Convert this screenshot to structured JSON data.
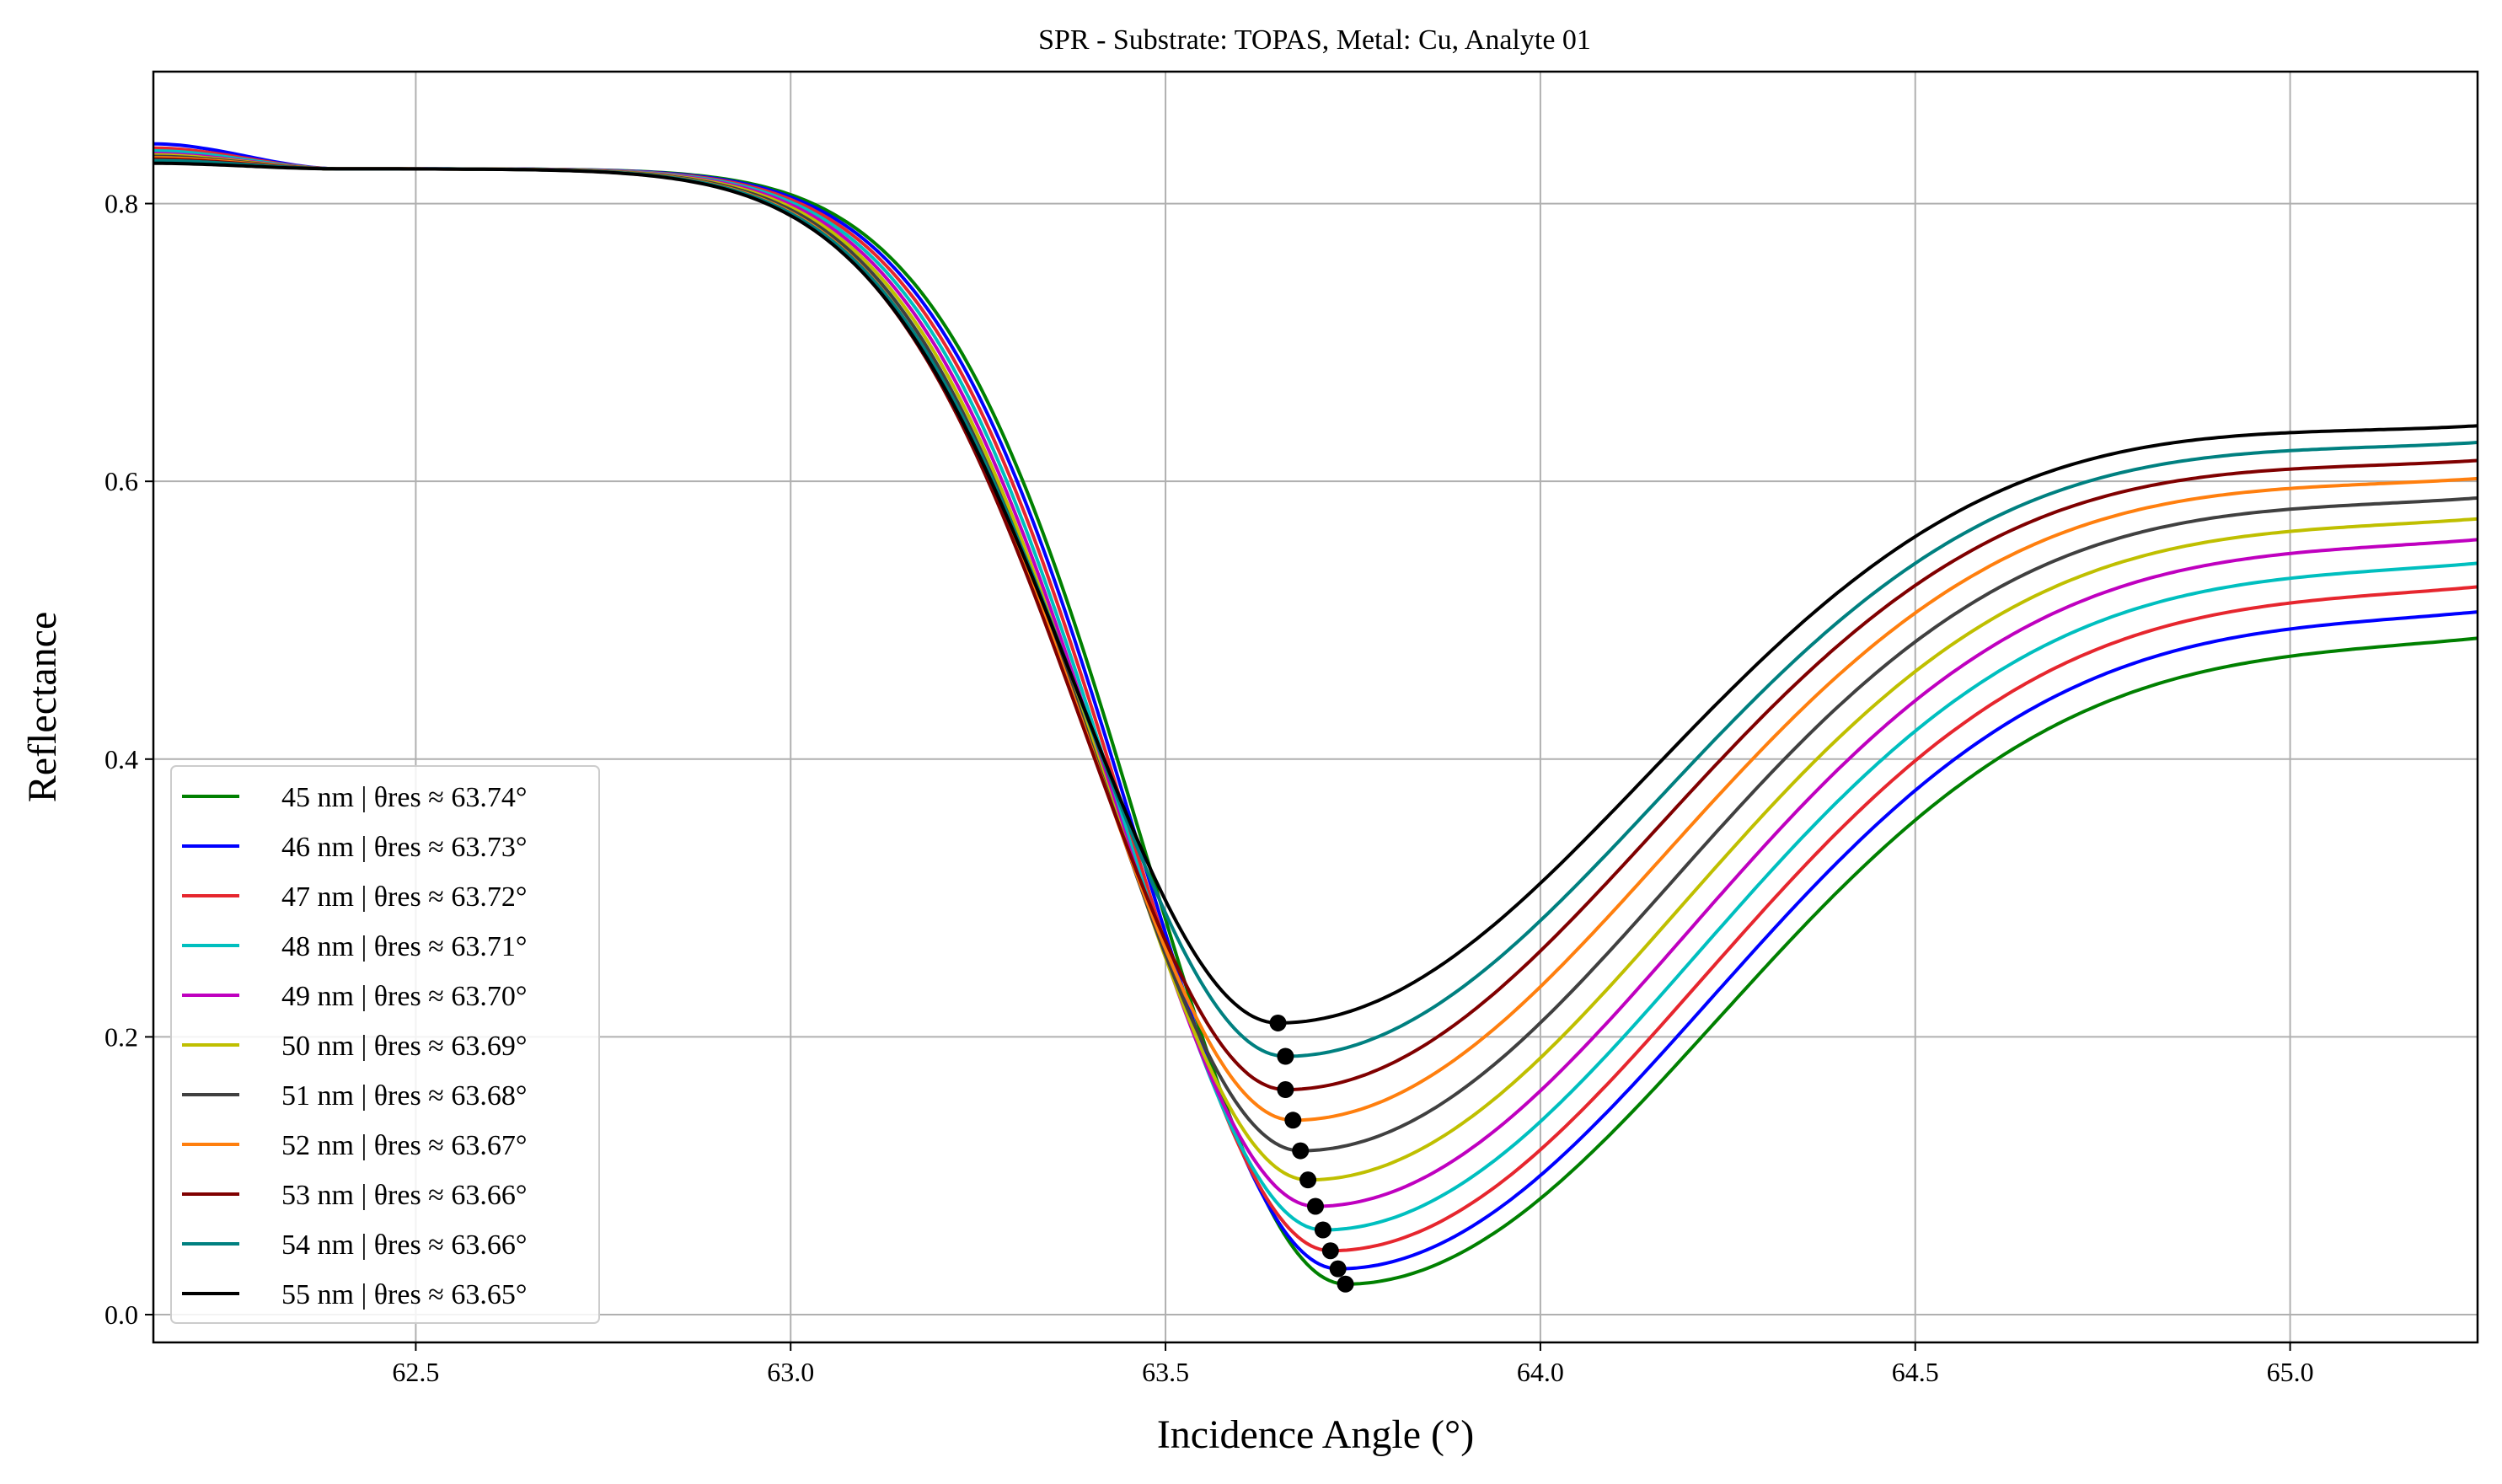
{
  "chart_data": {
    "type": "line",
    "title": "SPR - Substrate: TOPAS, Metal: Cu, Analyte 01",
    "xlabel": "Incidence Angle (°)",
    "ylabel": "Reflectance",
    "xlim": [
      62.15,
      65.25
    ],
    "ylim": [
      -0.02,
      0.895
    ],
    "xticks": [
      62.5,
      63.0,
      63.5,
      64.0,
      64.5,
      65.0
    ],
    "xtick_labels": [
      "62.5",
      "63.0",
      "63.5",
      "64.0",
      "64.5",
      "65.0"
    ],
    "yticks": [
      0.0,
      0.2,
      0.4,
      0.6,
      0.8
    ],
    "ytick_labels": [
      "0.0",
      "0.2",
      "0.4",
      "0.6",
      "0.8"
    ],
    "grid": true,
    "legend_position": "lower-left",
    "series": [
      {
        "name": "45 nm | θres ≈ 63.74°",
        "color": "#008000",
        "res_x": 63.74,
        "res_y": 0.022,
        "start_y": 0.832,
        "end_y": 0.487
      },
      {
        "name": "46 nm | θres ≈ 63.73°",
        "color": "#0000ff",
        "res_x": 63.73,
        "res_y": 0.033,
        "start_y": 0.843,
        "end_y": 0.506
      },
      {
        "name": "47 nm | θres ≈ 63.72°",
        "color": "#e6262e",
        "res_x": 63.72,
        "res_y": 0.046,
        "start_y": 0.84,
        "end_y": 0.524
      },
      {
        "name": "48 nm | θres ≈ 63.71°",
        "color": "#00bfbf",
        "res_x": 63.71,
        "res_y": 0.061,
        "start_y": 0.838,
        "end_y": 0.541
      },
      {
        "name": "49 nm | θres ≈ 63.70°",
        "color": "#bf00bf",
        "res_x": 63.7,
        "res_y": 0.078,
        "start_y": 0.836,
        "end_y": 0.558
      },
      {
        "name": "50 nm | θres ≈ 63.69°",
        "color": "#bfbf00",
        "res_x": 63.69,
        "res_y": 0.097,
        "start_y": 0.835,
        "end_y": 0.573
      },
      {
        "name": "51 nm | θres ≈ 63.68°",
        "color": "#404040",
        "res_x": 63.68,
        "res_y": 0.118,
        "start_y": 0.834,
        "end_y": 0.588
      },
      {
        "name": "52 nm | θres ≈ 63.67°",
        "color": "#ff7f0e",
        "res_x": 63.67,
        "res_y": 0.14,
        "start_y": 0.833,
        "end_y": 0.602
      },
      {
        "name": "53 nm | θres ≈ 63.66°",
        "color": "#800000",
        "res_x": 63.66,
        "res_y": 0.162,
        "start_y": 0.832,
        "end_y": 0.615
      },
      {
        "name": "54 nm | θres ≈ 63.66°",
        "color": "#008080",
        "res_x": 63.66,
        "res_y": 0.186,
        "start_y": 0.831,
        "end_y": 0.628
      },
      {
        "name": "55 nm | θres ≈ 63.65°",
        "color": "#000000",
        "res_x": 63.65,
        "res_y": 0.21,
        "start_y": 0.829,
        "end_y": 0.64
      }
    ],
    "resonance_marker_color": "#000000"
  }
}
